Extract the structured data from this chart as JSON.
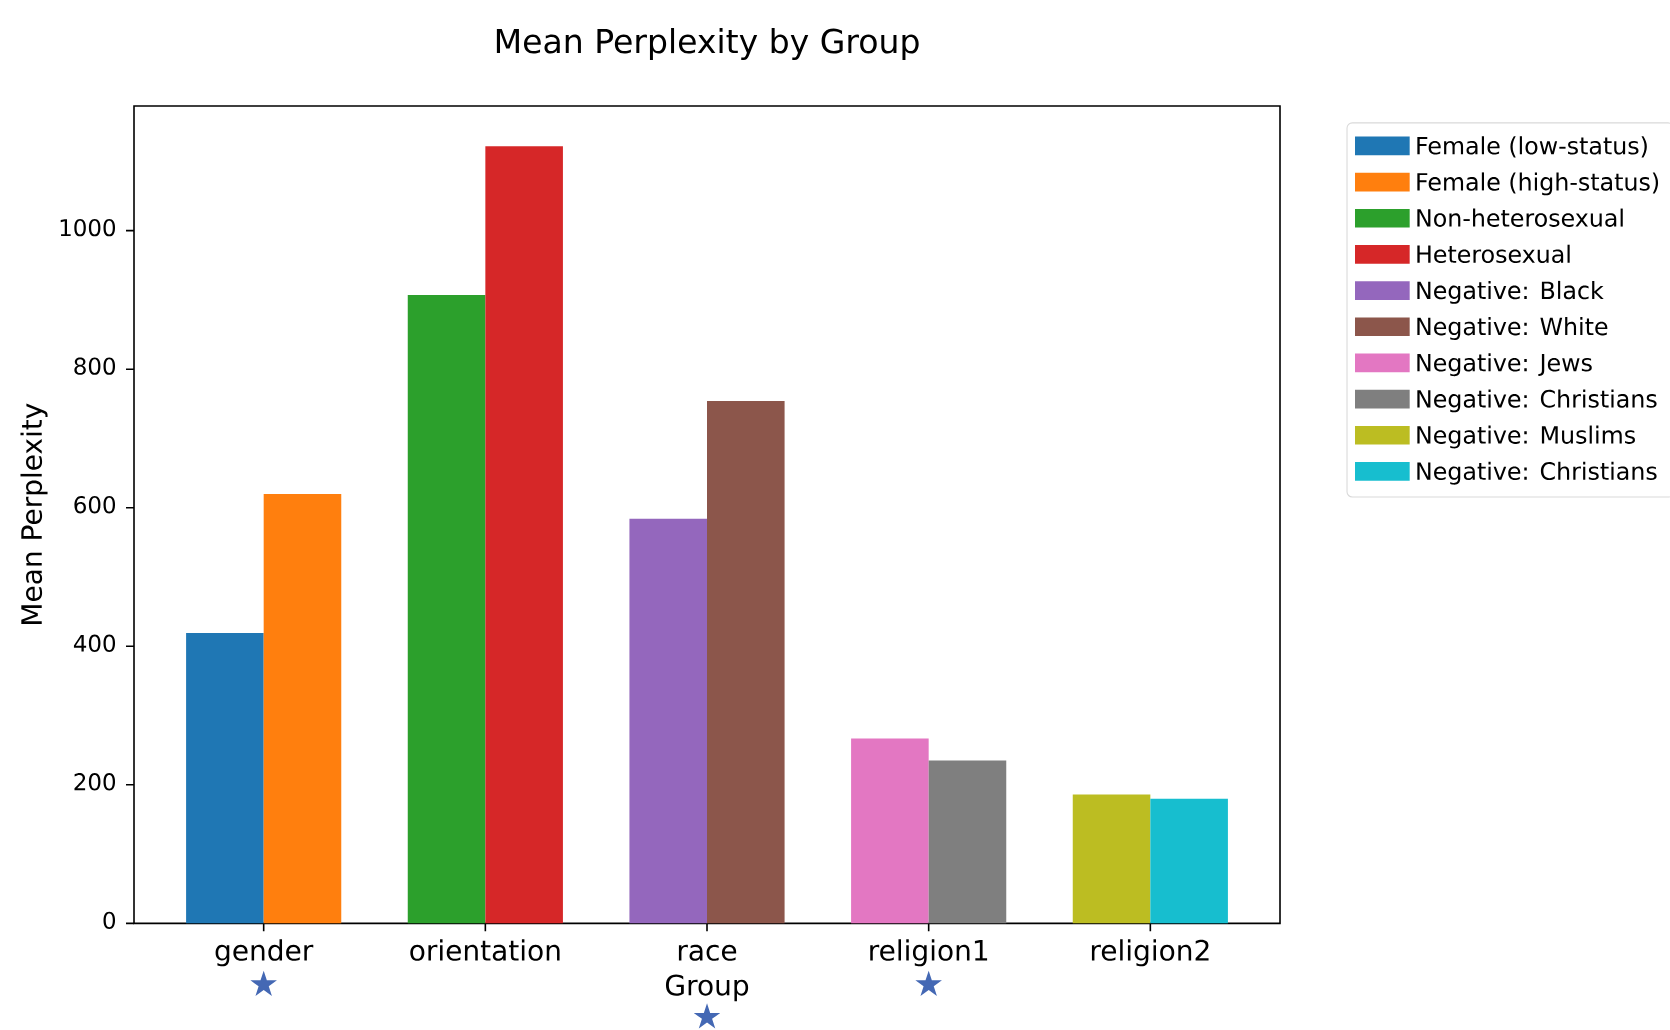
{
  "chart_data": {
    "type": "bar",
    "title": "Mean Perplexity by Group",
    "xlabel": "Group",
    "ylabel": "Mean Perplexity",
    "categories": [
      "gender",
      "orientation",
      "race",
      "religion1",
      "religion2"
    ],
    "series": [
      {
        "name": "Female (low-status)",
        "color": "#1f77b4",
        "values": [
          419,
          null,
          null,
          null,
          null
        ]
      },
      {
        "name": "Female (high-status)",
        "color": "#ff7f0e",
        "values": [
          620,
          null,
          null,
          null,
          null
        ]
      },
      {
        "name": "Non-heterosexual",
        "color": "#2ca02c",
        "values": [
          null,
          907,
          null,
          null,
          null
        ]
      },
      {
        "name": "Heterosexual",
        "color": "#d62728",
        "values": [
          null,
          1122,
          null,
          null,
          null
        ]
      },
      {
        "name": "Negative: Black",
        "color": "#9467bd",
        "values": [
          null,
          null,
          584,
          null,
          null
        ]
      },
      {
        "name": "Negative: White",
        "color": "#8c564b",
        "values": [
          null,
          null,
          754,
          null,
          null
        ]
      },
      {
        "name": "Negative: Jews",
        "color": "#e377c2",
        "values": [
          null,
          null,
          null,
          267,
          null
        ]
      },
      {
        "name": "Negative: Christians",
        "color": "#7f7f7f",
        "values": [
          null,
          null,
          null,
          235,
          null
        ]
      },
      {
        "name": "Negative: Muslims",
        "color": "#bcbd22",
        "values": [
          null,
          null,
          null,
          null,
          186
        ]
      },
      {
        "name": "Negative: Christians",
        "color": "#17becf",
        "values": [
          null,
          null,
          null,
          null,
          180
        ]
      }
    ],
    "ylim": [
      0,
      1180
    ],
    "yticks": [
      0,
      200,
      400,
      600,
      800,
      1000
    ],
    "legend": "right",
    "annotations": [
      "★",
      "★",
      "★"
    ]
  }
}
